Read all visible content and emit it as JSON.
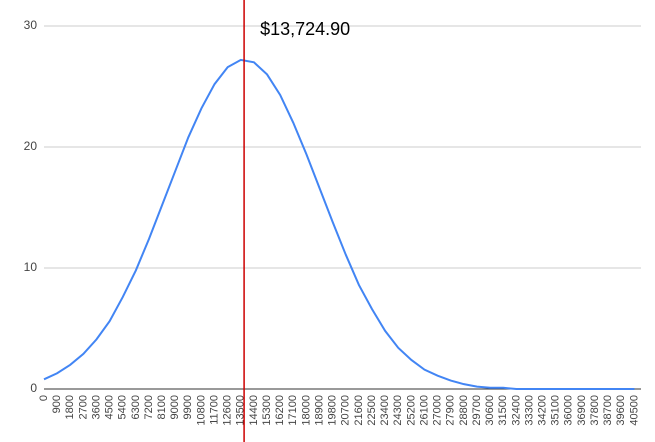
{
  "chart_data": {
    "type": "line",
    "x": [
      0,
      900,
      1800,
      2700,
      3600,
      4500,
      5400,
      6300,
      7200,
      8100,
      9000,
      9900,
      10800,
      11700,
      12600,
      13500,
      14400,
      15300,
      16200,
      17100,
      18000,
      18900,
      19800,
      20700,
      21600,
      22500,
      23400,
      24300,
      25200,
      26100,
      27000,
      27900,
      28800,
      29700,
      30600,
      31500,
      32400,
      33300,
      34200,
      35100,
      36000,
      36900,
      37800,
      38700,
      39600,
      40500
    ],
    "series": [
      {
        "color": "#4285f4",
        "values": [
          0.8,
          1.3,
          2.0,
          2.9,
          4.1,
          5.6,
          7.6,
          9.8,
          12.4,
          15.2,
          18.0,
          20.8,
          23.2,
          25.2,
          26.6,
          27.2,
          27.0,
          26.0,
          24.3,
          22.0,
          19.4,
          16.6,
          13.8,
          11.1,
          8.6,
          6.6,
          4.8,
          3.4,
          2.4,
          1.6,
          1.1,
          0.7,
          0.4,
          0.2,
          0.1,
          0.1,
          0,
          0,
          0,
          0,
          0,
          0,
          0,
          0,
          0,
          0
        ]
      }
    ],
    "xlim": [
      0,
      40950
    ],
    "xticks": [
      0,
      900,
      1800,
      2700,
      3600,
      4500,
      5400,
      6300,
      7200,
      8100,
      9000,
      9900,
      10800,
      11700,
      12600,
      13500,
      14400,
      15300,
      16200,
      17100,
      18000,
      18900,
      19800,
      20700,
      21600,
      22500,
      23400,
      24300,
      25200,
      26100,
      27000,
      27900,
      28800,
      29700,
      30600,
      31500,
      32400,
      33300,
      34200,
      35100,
      36000,
      36900,
      37800,
      38700,
      39600,
      40500
    ],
    "ylim": [
      0,
      30
    ],
    "yticks": [
      0,
      10,
      20,
      30
    ],
    "grid": true,
    "marker": {
      "value": 13724.9,
      "label": "$13,724.90",
      "color": "#cc0000"
    }
  }
}
